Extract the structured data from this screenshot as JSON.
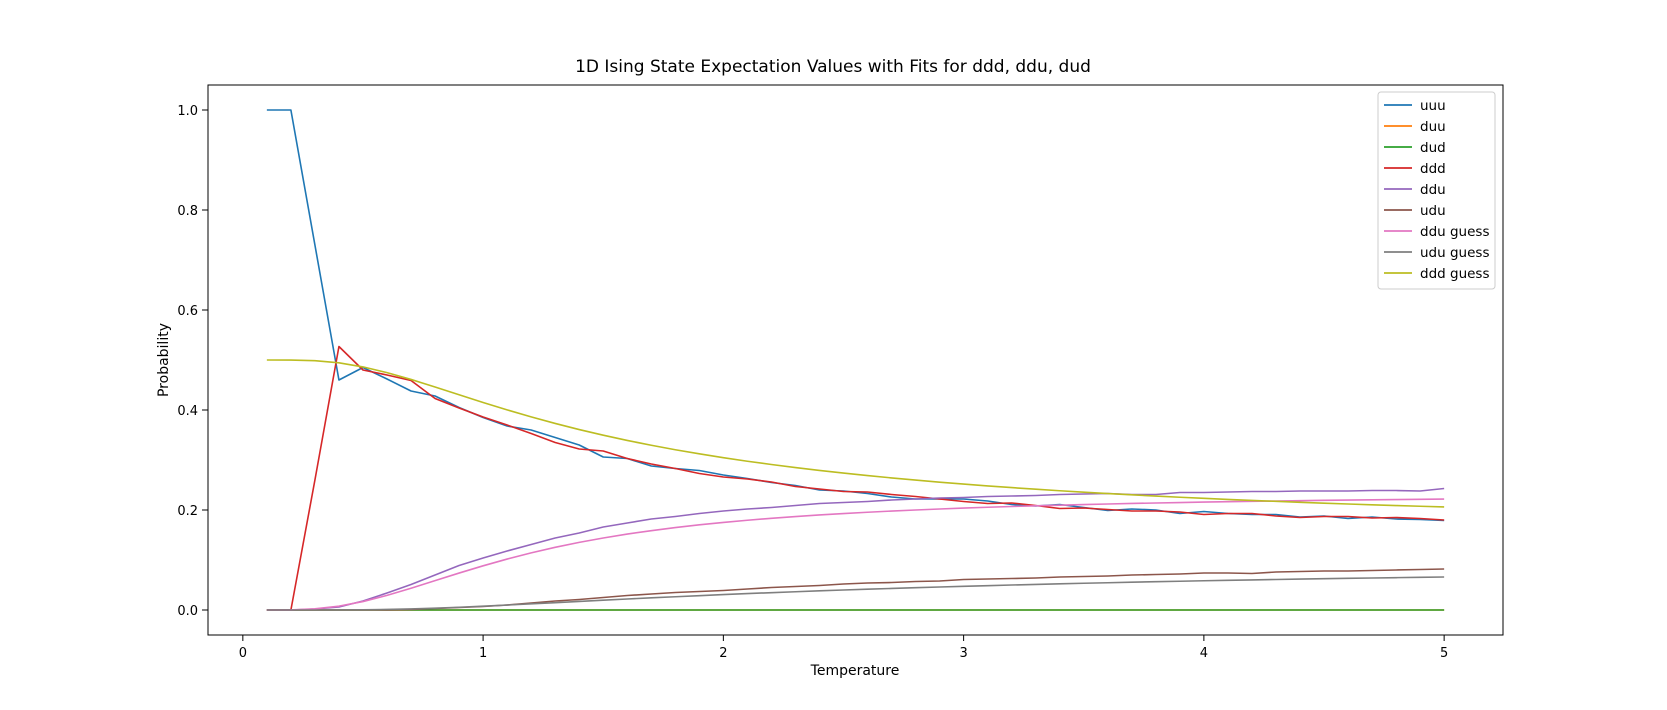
{
  "chart_data": {
    "type": "line",
    "title": "1D Ising State Expectation Values with Fits for ddd, ddu, dud",
    "xlabel": "Temperature",
    "ylabel": "Probability",
    "xlim": [
      -0.145,
      5.245
    ],
    "ylim": [
      -0.05,
      1.05
    ],
    "xticks": [
      0,
      1,
      2,
      3,
      4,
      5
    ],
    "yticks": [
      0.0,
      0.2,
      0.4,
      0.6,
      0.8,
      1.0
    ],
    "xtick_labels": [
      "0",
      "1",
      "2",
      "3",
      "4",
      "5"
    ],
    "ytick_labels": [
      "0.0",
      "0.2",
      "0.4",
      "0.6",
      "0.8",
      "1.0"
    ],
    "grid": false,
    "legend_position": "top-right",
    "x": [
      0.1,
      0.2,
      0.3,
      0.4,
      0.5,
      0.6,
      0.7,
      0.8,
      0.9,
      1.0,
      1.1,
      1.2,
      1.3,
      1.4,
      1.5,
      1.6,
      1.7,
      1.8,
      1.9,
      2.0,
      2.1,
      2.2,
      2.3,
      2.4,
      2.5,
      2.6,
      2.7,
      2.8,
      2.9,
      3.0,
      3.1,
      3.2,
      3.3,
      3.4,
      3.5,
      3.6,
      3.7,
      3.8,
      3.9,
      4.0,
      4.1,
      4.2,
      4.3,
      4.4,
      4.5,
      4.6,
      4.7,
      4.8,
      4.9,
      5.0
    ],
    "series": [
      {
        "name": "uuu",
        "color": "#1f77b4",
        "values": [
          1.0,
          1.0,
          0.73,
          0.46,
          0.485,
          0.462,
          0.438,
          0.428,
          0.405,
          0.385,
          0.368,
          0.36,
          0.345,
          0.33,
          0.306,
          0.303,
          0.288,
          0.283,
          0.279,
          0.27,
          0.263,
          0.255,
          0.249,
          0.24,
          0.238,
          0.233,
          0.226,
          0.222,
          0.222,
          0.222,
          0.218,
          0.211,
          0.208,
          0.211,
          0.205,
          0.199,
          0.202,
          0.2,
          0.193,
          0.197,
          0.193,
          0.191,
          0.191,
          0.186,
          0.188,
          0.183,
          0.186,
          0.182,
          0.181,
          0.179
        ]
      },
      {
        "name": "duu",
        "color": "#ff7f0e",
        "values": [
          0.0,
          0.0,
          0.0,
          0.0,
          0.0,
          0.0,
          0.0,
          0.0,
          0.0,
          0.0,
          0.0,
          0.0,
          0.0,
          0.0,
          0.0,
          0.0,
          0.0,
          0.0,
          0.0,
          0.0,
          0.0,
          0.0,
          0.0,
          0.0,
          0.0,
          0.0,
          0.0,
          0.0,
          0.0,
          0.0,
          0.0,
          0.0,
          0.0,
          0.0,
          0.0,
          0.0,
          0.0,
          0.0,
          0.0,
          0.0,
          0.0,
          0.0,
          0.0,
          0.0,
          0.0,
          0.0,
          0.0,
          0.0,
          0.0,
          0.0
        ]
      },
      {
        "name": "dud",
        "color": "#2ca02c",
        "values": [
          0.0,
          0.0,
          0.0,
          0.0,
          0.0,
          0.0,
          0.0,
          0.0,
          0.0,
          0.0,
          0.0,
          0.0,
          0.0,
          0.0,
          0.0,
          0.0,
          0.0,
          0.0,
          0.0,
          0.0,
          0.0,
          0.0,
          0.0,
          0.0,
          0.0,
          0.0,
          0.0,
          0.0,
          0.0,
          0.0,
          0.0,
          0.0,
          0.0,
          0.0,
          0.0,
          0.0,
          0.0,
          0.0,
          0.0,
          0.0,
          0.0,
          0.0,
          0.0,
          0.0,
          0.0,
          0.0,
          0.0,
          0.0,
          0.0,
          0.0
        ]
      },
      {
        "name": "ddd",
        "color": "#d62728",
        "values": [
          0.0,
          0.0,
          0.26,
          0.527,
          0.48,
          0.47,
          0.459,
          0.423,
          0.404,
          0.386,
          0.37,
          0.353,
          0.335,
          0.322,
          0.318,
          0.303,
          0.292,
          0.283,
          0.273,
          0.266,
          0.262,
          0.256,
          0.247,
          0.242,
          0.237,
          0.236,
          0.231,
          0.227,
          0.222,
          0.217,
          0.213,
          0.214,
          0.209,
          0.203,
          0.204,
          0.201,
          0.198,
          0.198,
          0.196,
          0.191,
          0.193,
          0.193,
          0.188,
          0.185,
          0.187,
          0.187,
          0.184,
          0.185,
          0.183,
          0.18
        ]
      },
      {
        "name": "ddu",
        "color": "#9467bd",
        "values": [
          0.0,
          0.0,
          0.002,
          0.006,
          0.018,
          0.034,
          0.051,
          0.07,
          0.089,
          0.104,
          0.118,
          0.131,
          0.144,
          0.154,
          0.166,
          0.174,
          0.182,
          0.187,
          0.193,
          0.198,
          0.202,
          0.205,
          0.209,
          0.213,
          0.215,
          0.217,
          0.22,
          0.222,
          0.224,
          0.225,
          0.227,
          0.228,
          0.229,
          0.231,
          0.232,
          0.233,
          0.231,
          0.231,
          0.235,
          0.235,
          0.236,
          0.237,
          0.237,
          0.238,
          0.238,
          0.238,
          0.239,
          0.239,
          0.238,
          0.243
        ]
      },
      {
        "name": "udu",
        "color": "#8c564b",
        "values": [
          0.0,
          0.0,
          0.0,
          0.0,
          0.0,
          0.0,
          0.001,
          0.003,
          0.005,
          0.007,
          0.01,
          0.014,
          0.018,
          0.021,
          0.025,
          0.029,
          0.032,
          0.035,
          0.037,
          0.039,
          0.042,
          0.045,
          0.047,
          0.049,
          0.052,
          0.054,
          0.055,
          0.057,
          0.058,
          0.061,
          0.062,
          0.063,
          0.064,
          0.066,
          0.067,
          0.068,
          0.07,
          0.071,
          0.072,
          0.074,
          0.074,
          0.073,
          0.076,
          0.077,
          0.078,
          0.078,
          0.079,
          0.08,
          0.081,
          0.082
        ]
      },
      {
        "name": "ddu guess",
        "color": "#e377c2",
        "values": [
          0.0,
          0.0002,
          0.0023,
          0.0077,
          0.0169,
          0.0292,
          0.0435,
          0.0587,
          0.0739,
          0.0884,
          0.1019,
          0.1143,
          0.1254,
          0.1353,
          0.144,
          0.1518,
          0.1587,
          0.1649,
          0.1703,
          0.1752,
          0.1795,
          0.1834,
          0.1869,
          0.1901,
          0.1929,
          0.1955,
          0.1979,
          0.2,
          0.202,
          0.2038,
          0.2055,
          0.207,
          0.2084,
          0.2097,
          0.2109,
          0.212,
          0.2131,
          0.214,
          0.2149,
          0.2158,
          0.2166,
          0.2173,
          0.218,
          0.2187,
          0.2193,
          0.2199,
          0.2204,
          0.2209,
          0.2214,
          0.2219
        ]
      },
      {
        "name": "udu guess",
        "color": "#7f7f7f",
        "values": [
          0.0,
          0.0,
          0.0,
          0.0001,
          0.0004,
          0.0011,
          0.0022,
          0.0037,
          0.0055,
          0.0076,
          0.0099,
          0.0123,
          0.0147,
          0.0172,
          0.0196,
          0.022,
          0.0243,
          0.0265,
          0.0287,
          0.0308,
          0.0328,
          0.0347,
          0.0365,
          0.0383,
          0.04,
          0.0416,
          0.0431,
          0.0446,
          0.046,
          0.0474,
          0.0487,
          0.05,
          0.0512,
          0.0523,
          0.0535,
          0.0545,
          0.0556,
          0.0566,
          0.0575,
          0.0585,
          0.0593,
          0.0602,
          0.061,
          0.0618,
          0.0626,
          0.0633,
          0.064,
          0.0647,
          0.0654,
          0.066
        ]
      },
      {
        "name": "ddd guess",
        "color": "#bcbd22",
        "values": [
          0.5,
          0.4999,
          0.4986,
          0.4943,
          0.4862,
          0.4748,
          0.4611,
          0.446,
          0.4305,
          0.4151,
          0.4003,
          0.3863,
          0.3731,
          0.3609,
          0.3496,
          0.3391,
          0.3295,
          0.3205,
          0.3123,
          0.3046,
          0.2975,
          0.291,
          0.2848,
          0.2791,
          0.2738,
          0.2688,
          0.2642,
          0.2598,
          0.2557,
          0.2518,
          0.2482,
          0.2448,
          0.2416,
          0.2385,
          0.2356,
          0.2329,
          0.2303,
          0.2278,
          0.2255,
          0.2233,
          0.2212,
          0.2192,
          0.2173,
          0.2154,
          0.2137,
          0.212,
          0.2104,
          0.2089,
          0.2075,
          0.2061
        ]
      }
    ]
  }
}
